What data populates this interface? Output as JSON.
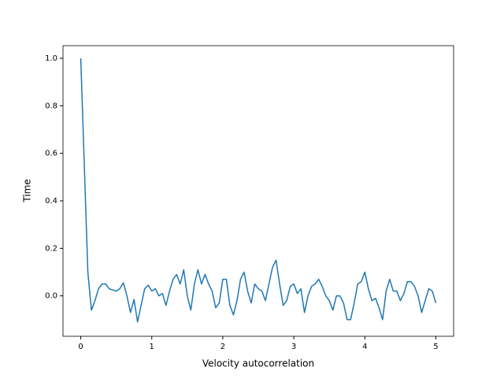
{
  "chart_data": {
    "type": "line",
    "xlabel": "Velocity autocorrelation",
    "ylabel": "Time",
    "x": [
      0,
      0.05,
      0.1,
      0.15,
      0.2,
      0.25,
      0.3,
      0.35,
      0.4,
      0.45,
      0.5,
      0.55,
      0.6,
      0.65,
      0.7,
      0.75,
      0.8,
      0.85,
      0.9,
      0.95,
      1,
      1.05,
      1.1,
      1.15,
      1.2,
      1.25,
      1.3,
      1.35,
      1.4,
      1.45,
      1.5,
      1.55,
      1.6,
      1.65,
      1.7,
      1.75,
      1.8,
      1.85,
      1.9,
      1.95,
      2,
      2.05,
      2.1,
      2.15,
      2.2,
      2.25,
      2.3,
      2.35,
      2.4,
      2.45,
      2.5,
      2.55,
      2.6,
      2.65,
      2.7,
      2.75,
      2.8,
      2.85,
      2.9,
      2.95,
      3,
      3.05,
      3.1,
      3.15,
      3.2,
      3.25,
      3.3,
      3.35,
      3.4,
      3.45,
      3.5,
      3.55,
      3.6,
      3.65,
      3.7,
      3.75,
      3.8,
      3.85,
      3.9,
      3.95,
      4,
      4.05,
      4.1,
      4.15,
      4.2,
      4.25,
      4.3,
      4.35,
      4.4,
      4.45,
      4.5,
      4.55,
      4.6,
      4.65,
      4.7,
      4.75,
      4.8,
      4.85,
      4.9,
      4.95,
      5
    ],
    "series": [
      {
        "color": "#1f77b4",
        "values": [
          1.0,
          0.55,
          0.1,
          -0.06,
          -0.02,
          0.03,
          0.05,
          0.05,
          0.03,
          0.025,
          0.02,
          0.03,
          0.055,
          0.0,
          -0.07,
          -0.015,
          -0.11,
          -0.04,
          0.03,
          0.045,
          0.02,
          0.03,
          0.0,
          0.01,
          -0.04,
          0.02,
          0.07,
          0.09,
          0.05,
          0.11,
          0.0,
          -0.06,
          0.05,
          0.11,
          0.05,
          0.09,
          0.05,
          0.02,
          -0.05,
          -0.03,
          0.07,
          0.07,
          -0.04,
          -0.08,
          -0.02,
          0.07,
          0.1,
          0.02,
          -0.03,
          0.05,
          0.03,
          0.02,
          -0.02,
          0.05,
          0.12,
          0.15,
          0.05,
          -0.04,
          -0.02,
          0.04,
          0.05,
          0.01,
          0.03,
          -0.07,
          0.0,
          0.04,
          0.05,
          0.07,
          0.04,
          0.0,
          -0.02,
          -0.06,
          0.0,
          0.0,
          -0.03,
          -0.1,
          -0.1,
          -0.03,
          0.05,
          0.06,
          0.1,
          0.03,
          -0.02,
          -0.01,
          -0.05,
          -0.1,
          0.02,
          0.07,
          0.02,
          0.02,
          -0.02,
          0.01,
          0.06,
          0.06,
          0.04,
          0.0,
          -0.07,
          -0.02,
          0.03,
          0.02,
          -0.03
        ]
      }
    ],
    "xlim": [
      -0.25,
      5.25
    ],
    "ylim": [
      -0.17,
      1.053
    ],
    "xticks": [
      0,
      1,
      2,
      3,
      4,
      5
    ],
    "yticks": [
      {
        "value": 0,
        "label": "0.0"
      },
      0.2,
      0.4,
      0.6,
      0.8,
      {
        "value": 1,
        "label": "1.0"
      }
    ]
  }
}
